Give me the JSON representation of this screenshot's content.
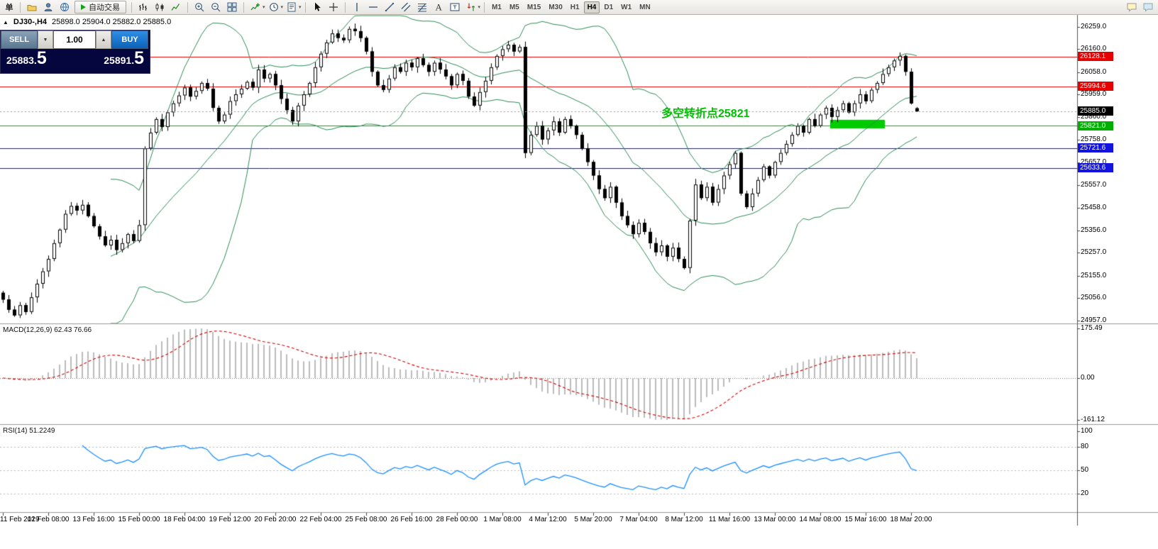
{
  "toolbar": {
    "new_order_label": "单",
    "autotrading_label": "自动交易",
    "timeframes": [
      "M1",
      "M5",
      "M15",
      "M30",
      "H1",
      "H4",
      "D1",
      "W1",
      "MN"
    ],
    "active_timeframe": "H4"
  },
  "one_click": {
    "sell_label": "SELL",
    "buy_label": "BUY",
    "volume": "1.00",
    "sell_price_main": "25883.",
    "sell_price_big": "5",
    "buy_price_main": "25891.",
    "buy_price_big": "5"
  },
  "chart": {
    "title": {
      "symbol_period": "DJ30-,H4",
      "ohlc": "25898.0 25904.0 25882.0 25885.0"
    },
    "macd_label": "MACD(12,26,9) 62.43 76.66",
    "rsi_label": "RSI(14) 51.2249"
  },
  "chart_data": {
    "type": "candlestick",
    "symbol": "DJ30-",
    "timeframe": "H4",
    "ohlc_current": {
      "open": 25898.0,
      "high": 25904.0,
      "low": 25882.0,
      "close": 25885.0
    },
    "current_price": 25885.0,
    "sell_price": 25883.5,
    "buy_price": 25891.5,
    "closes": [
      25050,
      25005,
      24980,
      25025,
      24995,
      25060,
      25120,
      25175,
      25230,
      25300,
      25360,
      25430,
      25465,
      25445,
      25470,
      25420,
      25375,
      25330,
      25290,
      25315,
      25270,
      25300,
      25340,
      25310,
      25380,
      25720,
      25790,
      25850,
      25815,
      25880,
      25920,
      25955,
      25990,
      25950,
      25975,
      26010,
      25985,
      25900,
      25840,
      25870,
      25930,
      25960,
      25985,
      26015,
      25990,
      26070,
      26030,
      26050,
      26000,
      25940,
      25890,
      25840,
      25910,
      25960,
      26010,
      26080,
      26140,
      26190,
      26230,
      26210,
      26200,
      26250,
      26240,
      26210,
      26150,
      26060,
      26000,
      25980,
      26030,
      26080,
      26060,
      26100,
      26080,
      26120,
      26090,
      26060,
      26100,
      26070,
      26040,
      26000,
      26050,
      26020,
      25950,
      25910,
      25970,
      26020,
      26080,
      26130,
      26160,
      26180,
      26150,
      26170,
      25700,
      25780,
      25820,
      25760,
      25800,
      25840,
      25790,
      25850,
      25820,
      25780,
      25720,
      25660,
      25600,
      25540,
      25500,
      25550,
      25480,
      25420,
      25380,
      25340,
      25390,
      25350,
      25300,
      25260,
      25290,
      25240,
      25280,
      25230,
      25190,
      25400,
      25560,
      25500,
      25550,
      25480,
      25540,
      25600,
      25650,
      25700,
      25520,
      25460,
      25520,
      25580,
      25640,
      25600,
      25660,
      25700,
      25740,
      25780,
      25820,
      25790,
      25850,
      25820,
      25870,
      25900,
      25860,
      25890,
      25920,
      25880,
      25920,
      25960,
      25930,
      25980,
      26010,
      26050,
      26080,
      26110,
      26130,
      26060,
      25920,
      25885
    ],
    "bars_per_time_label": 8,
    "time_labels": [
      "11 Feb 2019",
      "12 Feb 08:00",
      "13 Feb 16:00",
      "15 Feb 00:00",
      "18 Feb 04:00",
      "19 Feb 12:00",
      "20 Feb 20:00",
      "22 Feb 04:00",
      "25 Feb 08:00",
      "26 Feb 16:00",
      "28 Feb 00:00",
      "1 Mar 08:00",
      "4 Mar 12:00",
      "5 Mar 20:00",
      "7 Mar 04:00",
      "8 Mar 12:00",
      "11 Mar 16:00",
      "13 Mar 00:00",
      "14 Mar 08:00",
      "15 Mar 16:00",
      "18 Mar 20:00"
    ],
    "price_axis_labels": [
      "26259.0",
      "26160.0",
      "26058.0",
      "25959.0",
      "25860.0",
      "25758.0",
      "25657.0",
      "25557.0",
      "25458.0",
      "25356.0",
      "25257.0",
      "25155.0",
      "25056.0",
      "24957.0"
    ],
    "hlines": [
      {
        "price": 26128.1,
        "color": "#e60000"
      },
      {
        "price": 25994.6,
        "color": "#e60000"
      },
      {
        "price": 25821.0,
        "color": "#00b000"
      },
      {
        "price": 25721.6,
        "color": "#1414e0"
      },
      {
        "price": 25633.6,
        "color": "#1414e0"
      }
    ],
    "highlight_rect": {
      "from_bar": 146,
      "to_bar": 155,
      "price_top": 25847,
      "price_bottom": 25809,
      "color": "#00cc00"
    },
    "annotation": {
      "text": "多空转折点25821",
      "bar": 116,
      "price": 25919,
      "color": "#00c000"
    },
    "bollinger": {
      "period": 20,
      "deviation": 2,
      "color": "#2e8b57"
    },
    "macd": {
      "fast": 12,
      "slow": 26,
      "signal": 9,
      "main": 62.43,
      "signal_value": 76.66,
      "axis": [
        175.49,
        0,
        -161.12
      ],
      "histogram_color": "#bbbbbb",
      "signal_color": "#d00000"
    },
    "rsi": {
      "period": 14,
      "value": 51.2249,
      "axis": [
        100,
        80,
        50,
        20
      ],
      "levels": [
        80,
        50,
        20
      ],
      "color": "#1e90ff"
    }
  }
}
